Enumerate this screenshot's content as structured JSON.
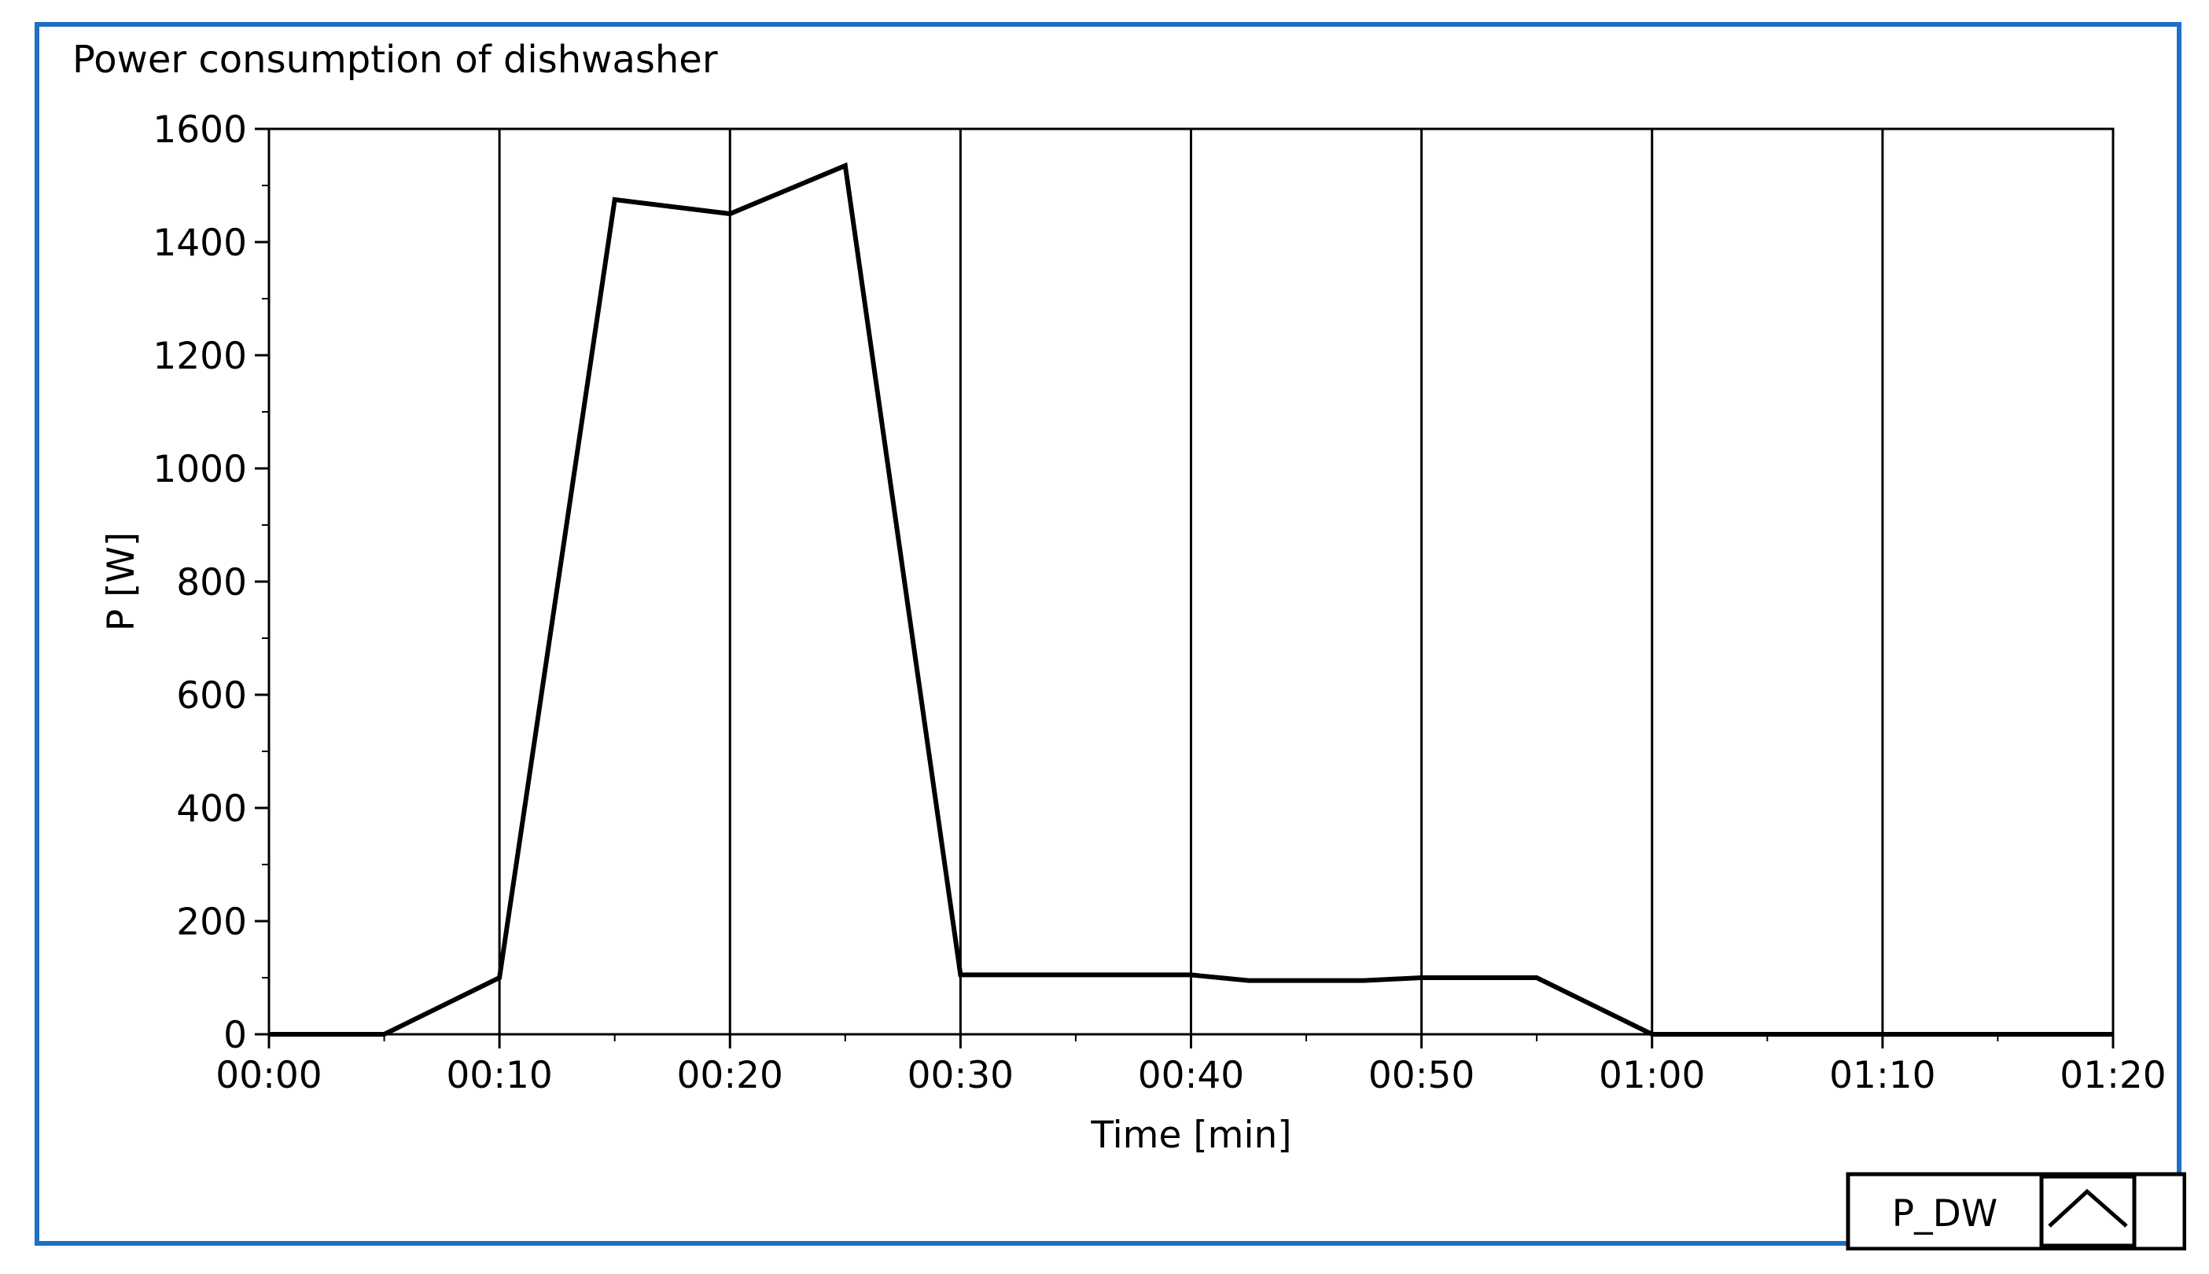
{
  "colors": {
    "frame_border": "#1f6fc5",
    "plot_background": "#ffffff",
    "gridline": "#000000",
    "series_line": "#000000"
  },
  "legend": {
    "label": "P_DW",
    "icon": "line-sample-icon"
  },
  "chart_data": {
    "type": "line",
    "title": "Power consumption of dishwasher",
    "xlabel": "Time [min]",
    "ylabel": "P [W]",
    "xlim": [
      0,
      80
    ],
    "ylim": [
      0,
      1600
    ],
    "x_ticks": [
      0,
      10,
      20,
      30,
      40,
      50,
      60,
      70,
      80
    ],
    "x_tick_labels": [
      "00:00",
      "00:10",
      "00:20",
      "00:30",
      "00:40",
      "00:50",
      "01:00",
      "01:10",
      "01:20"
    ],
    "y_ticks": [
      0,
      200,
      400,
      600,
      800,
      1000,
      1200,
      1400,
      1600
    ],
    "y_tick_labels": [
      "0",
      "200",
      "400",
      "600",
      "800",
      "1000",
      "1200",
      "1400",
      "1600"
    ],
    "grid": {
      "vertical": true,
      "horizontal": false
    },
    "legend_position": "bottom-right",
    "series": [
      {
        "name": "P_DW",
        "x": [
          0,
          5,
          10,
          15,
          20,
          25,
          30,
          40,
          42.5,
          47.5,
          50,
          55,
          60,
          65,
          70,
          75,
          80
        ],
        "y": [
          0,
          0,
          100,
          1475,
          1450,
          1535,
          105,
          105,
          95,
          95,
          100,
          100,
          0,
          0,
          0,
          0,
          0
        ]
      }
    ]
  }
}
